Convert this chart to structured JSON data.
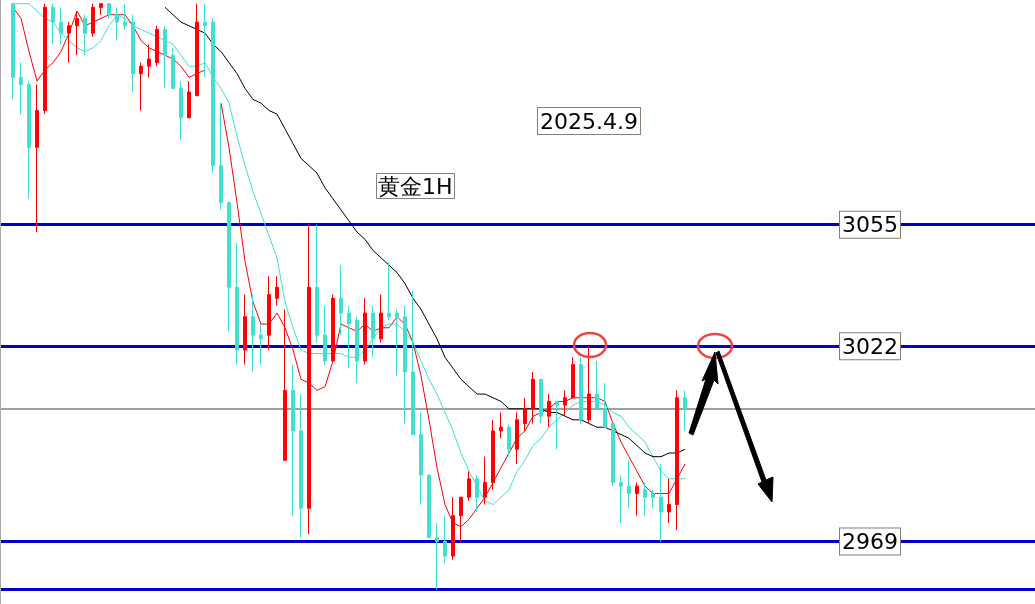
{
  "chart_data": {
    "type": "candlestick",
    "title": "黄金1H",
    "annotations": [
      "2025.4.9"
    ],
    "tick_labels": "y",
    "grid": false,
    "colors": [
      "#40e0d0",
      "#40e0d0",
      "#40e0d0",
      "#ff0000",
      "#ff0000",
      "#40e0d0",
      "#40e0d0",
      "#ff0000",
      "#ff0000",
      "#40e0d0",
      "#ff0000",
      "#ff0000",
      "#40e0d0",
      "#40e0d0",
      "#40e0d0",
      "#40e0d0",
      "#ff0000",
      "#ff0000",
      "#ff0000",
      "#40e0d0",
      "#40e0d0",
      "#40e0d0",
      "#ff0000",
      "#ff0000",
      "#40e0d0",
      "#40e0d0",
      "#40e0d0",
      "#40e0d0",
      "#40e0d0",
      "#ff0000",
      "#40e0d0",
      "#40e0d0",
      "#ff0000",
      "#ff0000",
      "#ff0000",
      "#40e0d0",
      "#40e0d0",
      "#ff0000",
      "#40e0d0",
      "#40e0d0",
      "#ff0000",
      "#40e0d0",
      "#40e0d0",
      "#40e0d0",
      "#ff0000",
      "#40e0d0",
      "#ff0000",
      "#40e0d0",
      "#40e0d0",
      "#40e0d0",
      "#40e0d0",
      "#40e0d0",
      "#40e0d0",
      "#40e0d0",
      "#40e0d0",
      "#ff0000",
      "#ff0000",
      "#ff0000",
      "#40e0d0",
      "#ff0000",
      "#ff0000",
      "#ff0000",
      "#40e0d0",
      "#ff0000",
      "#ff0000",
      "#ff0000",
      "#40e0d0",
      "#ff0000",
      "#40e0d0",
      "#ff0000",
      "#ff0000",
      "#40e0d0",
      "#ff0000",
      "#40e0d0",
      "#40e0d0",
      "#40e0d0",
      "#40e0d0",
      "#40e0d0",
      "#ff0000",
      "#40e0d0",
      "#40e0d0",
      "#40e0d0",
      "#ff0000",
      "#ff0000",
      "#40e0d0"
    ],
    "ylim": [
      2952,
      3116
    ],
    "yticks": [
      3055,
      3022,
      2969
    ],
    "categories": [
      null,
      null,
      null,
      null,
      null,
      null,
      null,
      null,
      null,
      null,
      null,
      null,
      null,
      null,
      null,
      null,
      null,
      null,
      null,
      null,
      null,
      null,
      null,
      null,
      null,
      null,
      null,
      null,
      null,
      null,
      null,
      null,
      null,
      null,
      null,
      null,
      null,
      null,
      null,
      null,
      null,
      null,
      null,
      null,
      null,
      null,
      null,
      null,
      null,
      null,
      null,
      null,
      null,
      null,
      null,
      null,
      null,
      null,
      null,
      null,
      null,
      null,
      null,
      null,
      null,
      null,
      null,
      null,
      null,
      null,
      null,
      null,
      null,
      null,
      null,
      null,
      null,
      null,
      null,
      null,
      null,
      null,
      null,
      null,
      null
    ],
    "ohlc": [
      [
        3115,
        3115,
        3089,
        3095
      ],
      [
        3095,
        3099,
        3085,
        3093
      ],
      [
        3093,
        3094,
        3062,
        3076
      ],
      [
        3076,
        3093,
        3053,
        3086
      ],
      [
        3086,
        3115,
        3085,
        3114
      ],
      [
        3114,
        3115,
        3104,
        3110
      ],
      [
        3110,
        3114,
        3104,
        3107
      ],
      [
        3107,
        3110,
        3099,
        3109
      ],
      [
        3109,
        3113,
        3101,
        3111
      ],
      [
        3111,
        3112,
        3101,
        3107
      ],
      [
        3107,
        3115,
        3106,
        3114
      ],
      [
        3114,
        3115,
        3112,
        3115
      ],
      [
        3115,
        3115,
        3111,
        3112
      ],
      [
        3112,
        3114,
        3105,
        3110
      ],
      [
        3110,
        3115,
        3108,
        3109
      ],
      [
        3110,
        3112,
        3091,
        3096
      ],
      [
        3096,
        3099,
        3086,
        3098
      ],
      [
        3098,
        3104,
        3095,
        3100
      ],
      [
        3099,
        3109,
        3098,
        3108
      ],
      [
        3108,
        3109,
        3092,
        3101
      ],
      [
        3101,
        3103,
        3092,
        3092
      ],
      [
        3092,
        3094,
        3078,
        3084
      ],
      [
        3084,
        3094,
        3084,
        3091
      ],
      [
        3090,
        3115,
        3090,
        3110
      ],
      [
        3110,
        3115,
        3095,
        3109
      ],
      [
        3110,
        3111,
        3069,
        3071
      ],
      [
        3071,
        3088,
        3059,
        3061
      ],
      [
        3061,
        3061,
        3026,
        3038
      ],
      [
        3038,
        3050,
        3017,
        3021
      ],
      [
        3021,
        3036,
        3017,
        3030
      ],
      [
        3030,
        3036,
        3015,
        3025
      ],
      [
        3025,
        3028,
        3017,
        3024
      ],
      [
        3025,
        3041,
        3021,
        3036
      ],
      [
        3035,
        3041,
        3033,
        3038
      ],
      [
        2991,
        3032,
        2991,
        3010
      ],
      [
        3010,
        3017,
        2976,
        2999
      ],
      [
        2999,
        3009,
        2970,
        2978
      ],
      [
        2978,
        3055,
        2971,
        3038
      ],
      [
        3038,
        3055,
        3023,
        3025
      ],
      [
        3025,
        3033,
        3017,
        3018
      ],
      [
        3018,
        3036,
        3018,
        3035
      ],
      [
        3035,
        3044,
        3025,
        3031
      ],
      [
        3031,
        3033,
        3016,
        3028
      ],
      [
        3029,
        3030,
        3012,
        3018
      ],
      [
        3018,
        3035,
        3017,
        3031
      ],
      [
        3031,
        3033,
        3019,
        3024
      ],
      [
        3024,
        3036,
        3023,
        3031
      ],
      [
        3031,
        3045,
        3029,
        3030
      ],
      [
        3031,
        3032,
        3014,
        3030
      ],
      [
        3030,
        3033,
        3001,
        3015
      ],
      [
        3015,
        3037,
        2998,
        2998
      ],
      [
        2998,
        3004,
        2979,
        2987
      ],
      [
        2987,
        2987,
        2970,
        2970
      ],
      [
        2970,
        2974,
        2956,
        2969
      ],
      [
        2969,
        2976,
        2963,
        2965
      ],
      [
        2965,
        2981,
        2964,
        2976
      ],
      [
        2976,
        2981,
        2969,
        2981
      ],
      [
        2981,
        2988,
        2980,
        2986
      ],
      [
        2986,
        2987,
        2977,
        2981
      ],
      [
        2981,
        2992,
        2979,
        2985
      ],
      [
        2985,
        3002,
        2983,
        2999
      ],
      [
        2999,
        3004,
        2997,
        3000
      ],
      [
        3000,
        3001,
        2992,
        2994
      ],
      [
        2994,
        3004,
        2990,
        3002
      ],
      [
        3001,
        3008,
        2999,
        3005
      ],
      [
        3005,
        3015,
        3001,
        3013
      ],
      [
        3013,
        3013,
        3001,
        3003
      ],
      [
        3003,
        3009,
        3000,
        3007
      ],
      [
        3007,
        3007,
        2994,
        3006
      ],
      [
        3006,
        3010,
        3003,
        3008
      ],
      [
        3008,
        3019,
        3008,
        3017
      ],
      [
        3017,
        3019,
        3001,
        3002
      ],
      [
        3002,
        3022,
        3001,
        3009
      ],
      [
        3009,
        3018,
        3005,
        3005
      ],
      [
        3005,
        3012,
        3000,
        3000
      ],
      [
        3001,
        3001,
        2984,
        2985
      ],
      [
        2985,
        2987,
        2974,
        2984
      ],
      [
        2984,
        2991,
        2978,
        2982
      ],
      [
        2982,
        2985,
        2976,
        2984
      ],
      [
        2983,
        2985,
        2976,
        2981
      ],
      [
        2982,
        2983,
        2978,
        2981
      ],
      [
        2981,
        2990,
        2969,
        2977
      ],
      [
        2977,
        2986,
        2974,
        2979
      ],
      [
        2979,
        3010,
        2972,
        3008
      ],
      [
        3008,
        3010,
        2999,
        3005
      ]
    ],
    "series": [
      {
        "type": "line",
        "color": "#ff0000",
        "values": [
          3114,
          3111,
          3102,
          3094,
          3097,
          3099,
          3102,
          3107,
          3113,
          3109,
          3110,
          3111,
          3112,
          3112,
          3112,
          3109,
          3105,
          3103,
          3102,
          3101,
          3100,
          3098,
          3095,
          3096,
          3097,
          null,
          3088,
          3076,
          3061,
          3045,
          3034,
          3028,
          3028,
          3031,
          3027,
          3021,
          3013,
          3012,
          3010,
          3011,
          3018,
          3028,
          3027,
          3026,
          3028,
          3026,
          3027,
          3027,
          3030,
          3028,
          3023,
          3014,
          3002,
          2989,
          2979,
          2974,
          2973,
          2975,
          2978,
          2981,
          2985,
          2989,
          2993,
          2997,
          2999,
          3003,
          3004,
          3005,
          3007,
          3007,
          3008,
          3008,
          3008,
          3008,
          3007,
          3001,
          2996,
          2992,
          2988,
          2984,
          2982,
          2982,
          2982,
          2986,
          2990
        ]
      },
      {
        "type": "line",
        "color": "#40e0d0",
        "values": [
          3115,
          3115,
          3115,
          3113,
          3111,
          3110,
          3107,
          3105,
          3103,
          3102,
          3103,
          3105,
          3109,
          3112,
          3111,
          3109,
          3108,
          3107,
          3106,
          3105,
          3104,
          3101,
          3098,
          3098,
          3099,
          3095,
          3092,
          3088,
          3079,
          3071,
          3064,
          3058,
          3052,
          3046,
          3034,
          3027,
          3021,
          3020,
          3020,
          3020,
          3020,
          3020,
          3019,
          3019,
          3021,
          3024,
          3027,
          3028,
          3028,
          3026,
          3023,
          3018,
          3013,
          3009,
          3004,
          2999,
          2993,
          2988,
          2984,
          2980,
          2979,
          2981,
          2983,
          2988,
          2991,
          2995,
          2997,
          3000,
          3002,
          3004,
          3006,
          3007,
          3007,
          3007,
          3006,
          3004,
          3003,
          3000,
          2998,
          2996,
          2992,
          2988,
          2986,
          2986,
          2986
        ]
      },
      {
        "type": "line",
        "color": "#000000",
        "values": [
          null,
          null,
          null,
          null,
          null,
          null,
          null,
          null,
          null,
          null,
          null,
          null,
          null,
          null,
          null,
          null,
          null,
          null,
          null,
          3114,
          3112,
          3110,
          3109,
          3108,
          3107,
          3104,
          3102,
          3099,
          3096,
          3092,
          3089,
          3088,
          3086,
          3085,
          3081,
          3077,
          3073,
          3071,
          3069,
          3065,
          3062,
          3059,
          3056,
          3053,
          3051,
          3048,
          3046,
          3044,
          3042,
          3039,
          3035,
          3032,
          3028,
          3024,
          3019,
          3016,
          3013,
          3011,
          3009,
          3009,
          3008,
          3007,
          3005,
          3005,
          3005,
          3005,
          3005,
          3004,
          3004,
          3003,
          3002,
          3002,
          3001,
          3000,
          3000,
          2999,
          2998,
          2997,
          2995,
          2993,
          2992,
          2992,
          2993,
          2993,
          2994
        ]
      }
    ],
    "ref_lines": [
      {
        "axis": "y",
        "value": 3055,
        "label": null,
        "color": "#0000cc"
      },
      {
        "axis": "y",
        "value": 3022,
        "label": null,
        "color": "#0000cc"
      },
      {
        "axis": "y",
        "value": 3005,
        "label": null,
        "color": "#808080"
      },
      {
        "axis": "y",
        "value": 2969,
        "label": null,
        "color": "#0000cc"
      },
      {
        "axis": "y",
        "value": 2956,
        "label": null,
        "color": "#0000cc"
      }
    ]
  }
}
